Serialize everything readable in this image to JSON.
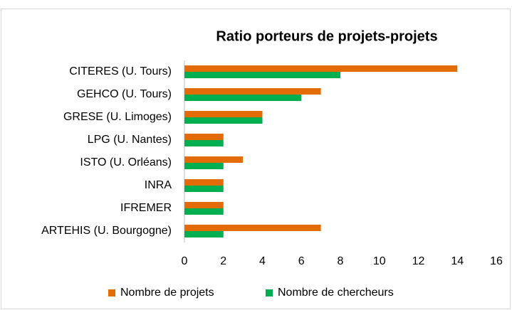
{
  "chart_data": {
    "type": "barh",
    "title": "Ratio porteurs de projets-projets",
    "categories": [
      "CITERES (U. Tours)",
      "GEHCO (U. Tours)",
      "GRESE (U. Limoges)",
      "LPG (U. Nantes)",
      "ISTO (U. Orléans)",
      "INRA",
      "IFREMER",
      "ARTEHIS (U. Bourgogne)"
    ],
    "series": [
      {
        "name": "Nombre de projets",
        "color": "#e36c09",
        "values": [
          14,
          7,
          4,
          2,
          3,
          2,
          2,
          7
        ]
      },
      {
        "name": "Nombre de chercheurs",
        "color": "#00b050",
        "values": [
          8,
          6,
          4,
          2,
          2,
          2,
          2,
          2
        ]
      }
    ],
    "xlim": [
      0,
      16
    ],
    "xticks": [
      0,
      2,
      4,
      6,
      8,
      10,
      12,
      14,
      16
    ],
    "grid": false,
    "legend": "bottom"
  }
}
